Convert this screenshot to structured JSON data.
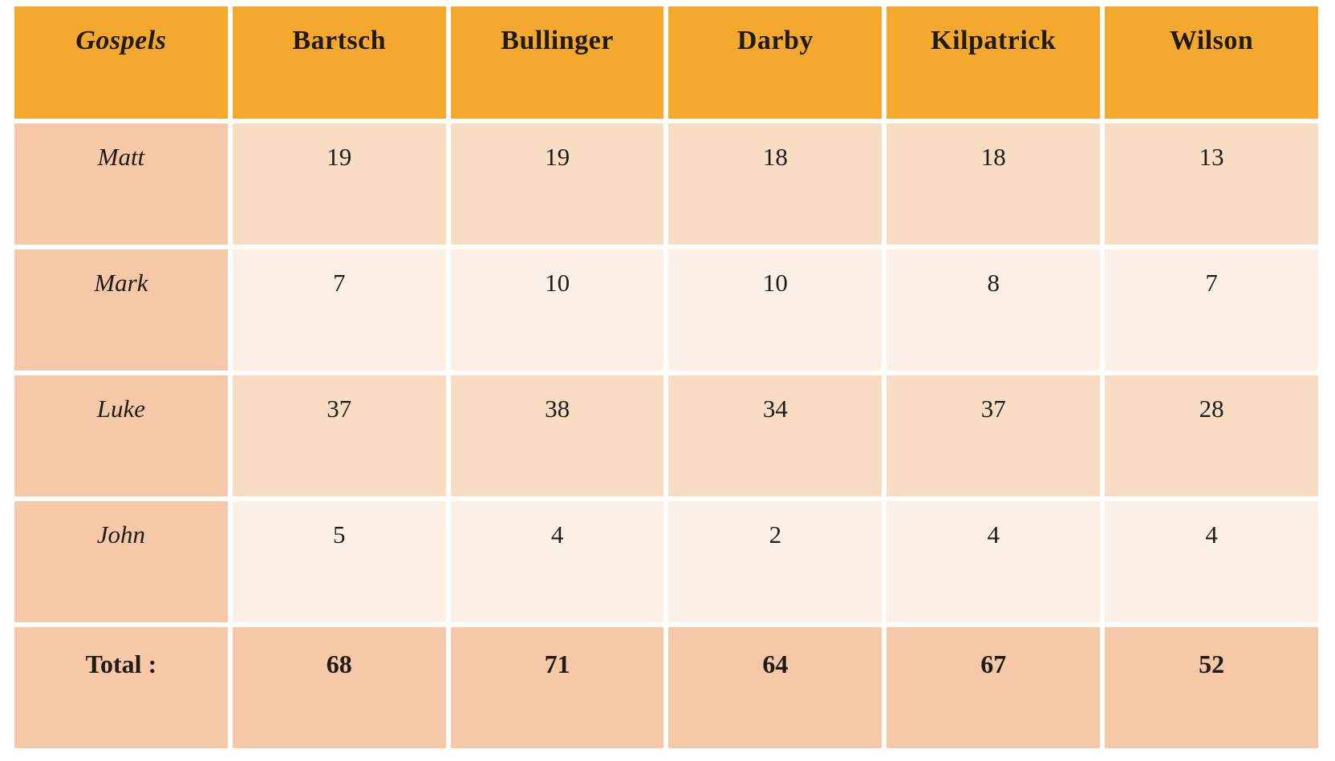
{
  "table": {
    "corner_label": "Gospels",
    "columns": [
      "Bartsch",
      "Bullinger",
      "Darby",
      "Kilpatrick",
      "Wilson"
    ],
    "rows": [
      {
        "label": "Matt",
        "values": [
          "19",
          "19",
          "18",
          "18",
          "13"
        ]
      },
      {
        "label": "Mark",
        "values": [
          "7",
          "10",
          "10",
          "8",
          "7"
        ]
      },
      {
        "label": "Luke",
        "values": [
          "37",
          "38",
          "34",
          "37",
          "28"
        ]
      },
      {
        "label": "John",
        "values": [
          "5",
          "4",
          "2",
          "4",
          "4"
        ]
      }
    ],
    "total_row": {
      "label": "Total :",
      "values": [
        "68",
        "71",
        "64",
        "67",
        "52"
      ]
    }
  },
  "colors": {
    "header_bg": "#F5A82E",
    "label_bg": "#F5C9A8",
    "band_dark": "#F8DCC4",
    "band_light": "#FCF0E6",
    "text": "#201B15",
    "background": "#FFFFFF"
  },
  "chart_data": {
    "type": "table",
    "title": "Gospels",
    "categories": [
      "Matt",
      "Mark",
      "Luke",
      "John",
      "Total :"
    ],
    "series": [
      {
        "name": "Bartsch",
        "values": [
          19,
          7,
          37,
          5,
          68
        ]
      },
      {
        "name": "Bullinger",
        "values": [
          19,
          10,
          38,
          4,
          71
        ]
      },
      {
        "name": "Darby",
        "values": [
          18,
          10,
          34,
          2,
          64
        ]
      },
      {
        "name": "Kilpatrick",
        "values": [
          18,
          8,
          37,
          4,
          67
        ]
      },
      {
        "name": "Wilson",
        "values": [
          13,
          7,
          28,
          4,
          52
        ]
      }
    ]
  }
}
